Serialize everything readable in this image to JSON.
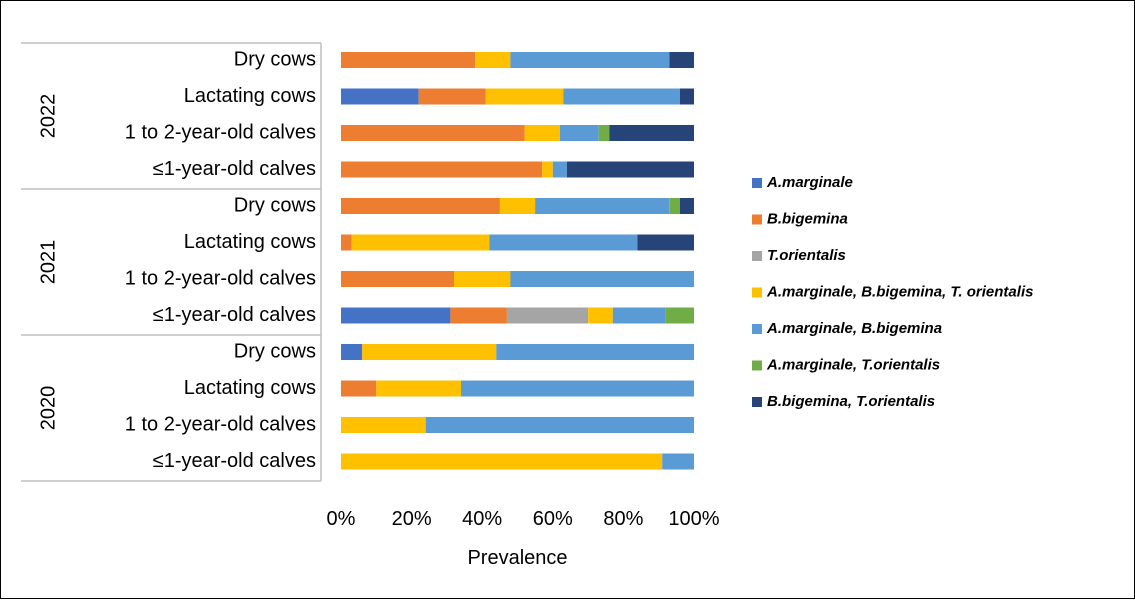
{
  "chart_data": {
    "type": "bar",
    "orientation": "horizontal-stacked-100",
    "xlabel": "Prevalence",
    "xlim": [
      0,
      100
    ],
    "x_ticks": [
      "0%",
      "20%",
      "40%",
      "60%",
      "80%",
      "100%"
    ],
    "grid": false,
    "legend_position": "right",
    "groups": [
      {
        "name": "2022",
        "categories": [
          "Dry cows",
          "Lactating cows",
          "1 to 2-year-old calves",
          "≤1-year-old calves"
        ]
      },
      {
        "name": "2021",
        "categories": [
          "Dry cows",
          "Lactating cows",
          "1 to 2-year-old calves",
          "≤1-year-old calves"
        ]
      },
      {
        "name": "2020",
        "categories": [
          "Dry cows",
          "Lactating cows",
          "1 to 2-year-old calves",
          "≤1-year-old calves"
        ]
      }
    ],
    "series": [
      {
        "name": "A.marginale",
        "color": "#4472C4",
        "values": [
          0,
          22,
          0,
          0,
          0,
          0,
          0,
          31,
          6,
          0,
          0,
          0
        ]
      },
      {
        "name": "B.bigemina",
        "color": "#ED7D31",
        "values": [
          38,
          19,
          52,
          57,
          45,
          3,
          32,
          16,
          0,
          10,
          0,
          0
        ]
      },
      {
        "name": "T.orientalis",
        "color": "#A5A5A5",
        "values": [
          0,
          0,
          0,
          0,
          0,
          0,
          0,
          23,
          0,
          0,
          0,
          0
        ]
      },
      {
        "name": "A.marginale, B.bigemina, T. orientalis",
        "color": "#FFC000",
        "values": [
          10,
          22,
          10,
          3,
          10,
          39,
          16,
          7,
          38,
          24,
          24,
          91
        ]
      },
      {
        "name": "A.marginale, B.bigemina",
        "color": "#5B9BD5",
        "values": [
          45,
          33,
          11,
          4,
          38,
          42,
          52,
          15,
          56,
          66,
          76,
          9
        ]
      },
      {
        "name": "A.marginale, T.orientalis",
        "color": "#70AD47",
        "values": [
          0,
          0,
          3,
          0,
          3,
          0,
          0,
          8,
          0,
          0,
          0,
          0
        ]
      },
      {
        "name": "B.bigemina, T.orientalis",
        "color": "#264478",
        "values": [
          7,
          4,
          24,
          36,
          4,
          16,
          0,
          0,
          0,
          0,
          0,
          0
        ]
      }
    ]
  }
}
